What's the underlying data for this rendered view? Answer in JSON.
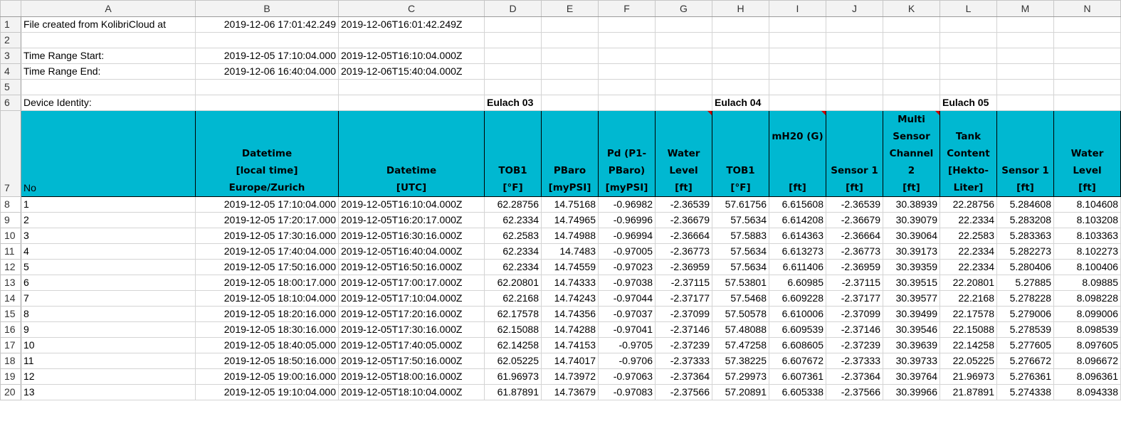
{
  "columns": [
    "A",
    "B",
    "C",
    "D",
    "E",
    "F",
    "G",
    "H",
    "I",
    "J",
    "K",
    "L",
    "M",
    "N"
  ],
  "info": {
    "r1": {
      "a": "File created from KolibriCloud at",
      "b": "2019-12-06 17:01:42.249",
      "c": "2019-12-06T16:01:42.249Z"
    },
    "r3": {
      "a": "Time Range Start:",
      "b": "2019-12-05 17:10:04.000",
      "c": "2019-12-05T16:10:04.000Z"
    },
    "r4": {
      "a": "Time Range End:",
      "b": "2019-12-06 16:40:04.000",
      "c": "2019-12-06T15:40:04.000Z"
    },
    "r6": {
      "a": "Device Identity:",
      "d": "Eulach 03",
      "h": "Eulach 04",
      "l": "Eulach 05"
    }
  },
  "headers": {
    "a": "No",
    "b": [
      "Datetime",
      "[local time]",
      "Europe/Zurich"
    ],
    "c": [
      "Datetime",
      "[UTC]"
    ],
    "d": [
      "TOB1",
      "[°F]"
    ],
    "e": [
      "PBaro",
      "[myPSI]"
    ],
    "f": [
      "Pd (P1-",
      "PBaro)",
      "[myPSI]"
    ],
    "g": [
      "Water",
      "Level",
      "[ft]"
    ],
    "h": [
      "TOB1",
      "[°F]"
    ],
    "i": [
      "mH20 (G)",
      "",
      "",
      "[ft]"
    ],
    "j": [
      "Sensor 1",
      "[ft]"
    ],
    "k": [
      "Multi",
      "Sensor",
      "Channel",
      "2",
      "[ft]"
    ],
    "l": [
      "Tank",
      "Content",
      "[Hekto-",
      "Liter]"
    ],
    "m": [
      "Sensor 1",
      "[ft]"
    ],
    "n": [
      "Water",
      "Level",
      "[ft]"
    ]
  },
  "rows": [
    [
      "1",
      "2019-12-05 17:10:04.000",
      "2019-12-05T16:10:04.000Z",
      "62.28756",
      "14.75168",
      "-0.96982",
      "-2.36539",
      "57.61756",
      "6.615608",
      "-2.36539",
      "30.38939",
      "22.28756",
      "5.284608",
      "8.104608"
    ],
    [
      "2",
      "2019-12-05 17:20:17.000",
      "2019-12-05T16:20:17.000Z",
      "62.2334",
      "14.74965",
      "-0.96996",
      "-2.36679",
      "57.5634",
      "6.614208",
      "-2.36679",
      "30.39079",
      "22.2334",
      "5.283208",
      "8.103208"
    ],
    [
      "3",
      "2019-12-05 17:30:16.000",
      "2019-12-05T16:30:16.000Z",
      "62.2583",
      "14.74988",
      "-0.96994",
      "-2.36664",
      "57.5883",
      "6.614363",
      "-2.36664",
      "30.39064",
      "22.2583",
      "5.283363",
      "8.103363"
    ],
    [
      "4",
      "2019-12-05 17:40:04.000",
      "2019-12-05T16:40:04.000Z",
      "62.2334",
      "14.7483",
      "-0.97005",
      "-2.36773",
      "57.5634",
      "6.613273",
      "-2.36773",
      "30.39173",
      "22.2334",
      "5.282273",
      "8.102273"
    ],
    [
      "5",
      "2019-12-05 17:50:16.000",
      "2019-12-05T16:50:16.000Z",
      "62.2334",
      "14.74559",
      "-0.97023",
      "-2.36959",
      "57.5634",
      "6.611406",
      "-2.36959",
      "30.39359",
      "22.2334",
      "5.280406",
      "8.100406"
    ],
    [
      "6",
      "2019-12-05 18:00:17.000",
      "2019-12-05T17:00:17.000Z",
      "62.20801",
      "14.74333",
      "-0.97038",
      "-2.37115",
      "57.53801",
      "6.60985",
      "-2.37115",
      "30.39515",
      "22.20801",
      "5.27885",
      "8.09885"
    ],
    [
      "7",
      "2019-12-05 18:10:04.000",
      "2019-12-05T17:10:04.000Z",
      "62.2168",
      "14.74243",
      "-0.97044",
      "-2.37177",
      "57.5468",
      "6.609228",
      "-2.37177",
      "30.39577",
      "22.2168",
      "5.278228",
      "8.098228"
    ],
    [
      "8",
      "2019-12-05 18:20:16.000",
      "2019-12-05T17:20:16.000Z",
      "62.17578",
      "14.74356",
      "-0.97037",
      "-2.37099",
      "57.50578",
      "6.610006",
      "-2.37099",
      "30.39499",
      "22.17578",
      "5.279006",
      "8.099006"
    ],
    [
      "9",
      "2019-12-05 18:30:16.000",
      "2019-12-05T17:30:16.000Z",
      "62.15088",
      "14.74288",
      "-0.97041",
      "-2.37146",
      "57.48088",
      "6.609539",
      "-2.37146",
      "30.39546",
      "22.15088",
      "5.278539",
      "8.098539"
    ],
    [
      "10",
      "2019-12-05 18:40:05.000",
      "2019-12-05T17:40:05.000Z",
      "62.14258",
      "14.74153",
      "-0.9705",
      "-2.37239",
      "57.47258",
      "6.608605",
      "-2.37239",
      "30.39639",
      "22.14258",
      "5.277605",
      "8.097605"
    ],
    [
      "11",
      "2019-12-05 18:50:16.000",
      "2019-12-05T17:50:16.000Z",
      "62.05225",
      "14.74017",
      "-0.9706",
      "-2.37333",
      "57.38225",
      "6.607672",
      "-2.37333",
      "30.39733",
      "22.05225",
      "5.276672",
      "8.096672"
    ],
    [
      "12",
      "2019-12-05 19:00:16.000",
      "2019-12-05T18:00:16.000Z",
      "61.96973",
      "14.73972",
      "-0.97063",
      "-2.37364",
      "57.29973",
      "6.607361",
      "-2.37364",
      "30.39764",
      "21.96973",
      "5.276361",
      "8.096361"
    ],
    [
      "13",
      "2019-12-05 19:10:04.000",
      "2019-12-05T18:10:04.000Z",
      "61.87891",
      "14.73679",
      "-0.97083",
      "-2.37566",
      "57.20891",
      "6.605338",
      "-2.37566",
      "30.39966",
      "21.87891",
      "5.274338",
      "8.094338"
    ]
  ]
}
